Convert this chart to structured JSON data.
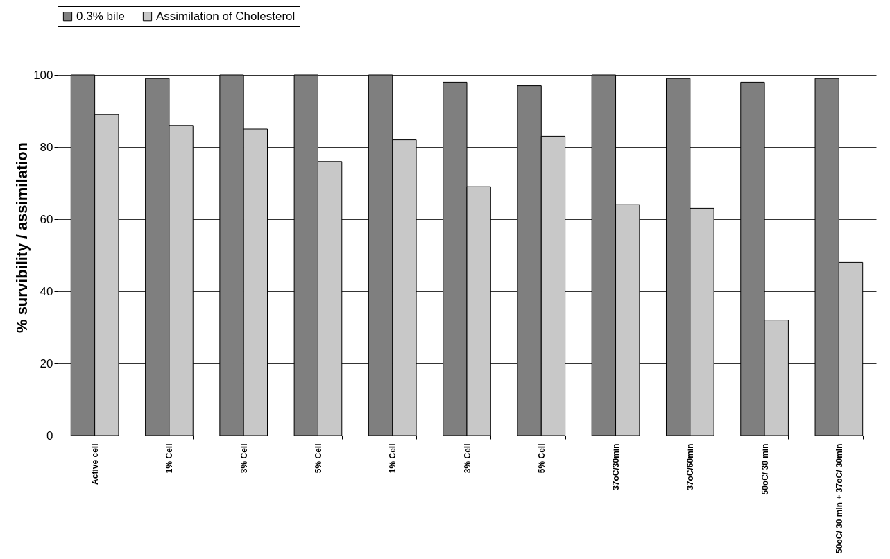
{
  "chart_data": {
    "type": "bar",
    "ylabel": "% survibility / assimilation",
    "categories": [
      "Active cell",
      "1% Cell",
      "3% Cell",
      "5% Cell",
      "1% Cell",
      "3% Cell",
      "5% Cell",
      "37oC/30min",
      "37oC/60min",
      "50oC/ 30 min",
      "50oC/ 30 min + 37oC/ 30min"
    ],
    "series": [
      {
        "name": "0.3% bile",
        "color": "#7f7f7f",
        "values": [
          100,
          99,
          100,
          100,
          100,
          98,
          97,
          100,
          99,
          98,
          99
        ]
      },
      {
        "name": "Assimilation of Cholesterol",
        "color": "#c8c8c8",
        "values": [
          89,
          86,
          85,
          76,
          82,
          69,
          83,
          64,
          63,
          32,
          48
        ]
      }
    ],
    "ylim": [
      0,
      110
    ],
    "yticks": [
      0,
      20,
      40,
      60,
      80,
      100
    ],
    "grid": "y",
    "legend": "top"
  }
}
